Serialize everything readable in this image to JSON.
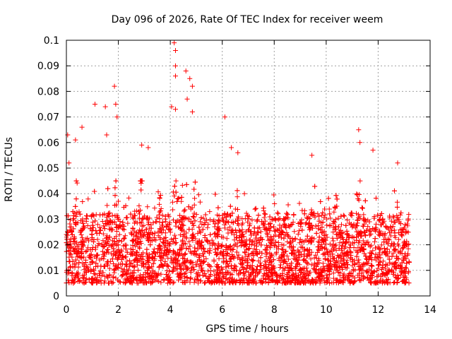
{
  "chart_data": {
    "type": "scatter",
    "title": "Day 096 of 2026, Rate Of TEC Index for receiver weem",
    "xlabel": "GPS time / hours",
    "ylabel": "ROTI / TECUs",
    "xlim": [
      0,
      14
    ],
    "ylim": [
      0,
      0.1
    ],
    "grid": true,
    "marker": "+",
    "color": "#ff0000",
    "x_ticks": [
      "0",
      "2",
      "4",
      "6",
      "8",
      "10",
      "12",
      "14"
    ],
    "y_ticks": [
      "0",
      "0.01",
      "0.02",
      "0.03",
      "0.04",
      "0.05",
      "0.06",
      "0.07",
      "0.08",
      "0.09",
      "0.1"
    ],
    "x_tick_values": [
      0,
      2,
      4,
      6,
      8,
      10,
      12,
      14
    ],
    "y_tick_values": [
      0,
      0.01,
      0.02,
      0.03,
      0.04,
      0.05,
      0.06,
      0.07,
      0.08,
      0.09,
      0.1
    ],
    "series": [
      {
        "name": "ROTI",
        "x_range": [
          0,
          13.2
        ],
        "baseline_range": [
          0.005,
          0.03
        ],
        "notable_points": [
          {
            "x": 0.05,
            "y": 0.063
          },
          {
            "x": 0.1,
            "y": 0.052
          },
          {
            "x": 0.35,
            "y": 0.061
          },
          {
            "x": 0.6,
            "y": 0.066
          },
          {
            "x": 1.1,
            "y": 0.075
          },
          {
            "x": 1.5,
            "y": 0.074
          },
          {
            "x": 1.55,
            "y": 0.063
          },
          {
            "x": 1.85,
            "y": 0.082
          },
          {
            "x": 1.9,
            "y": 0.075
          },
          {
            "x": 1.95,
            "y": 0.07
          },
          {
            "x": 2.9,
            "y": 0.059
          },
          {
            "x": 3.15,
            "y": 0.058
          },
          {
            "x": 4.05,
            "y": 0.074
          },
          {
            "x": 4.15,
            "y": 0.099
          },
          {
            "x": 4.2,
            "y": 0.096
          },
          {
            "x": 4.2,
            "y": 0.09
          },
          {
            "x": 4.2,
            "y": 0.086
          },
          {
            "x": 4.2,
            "y": 0.073
          },
          {
            "x": 4.6,
            "y": 0.088
          },
          {
            "x": 4.65,
            "y": 0.077
          },
          {
            "x": 4.75,
            "y": 0.085
          },
          {
            "x": 4.85,
            "y": 0.082
          },
          {
            "x": 4.85,
            "y": 0.072
          },
          {
            "x": 6.1,
            "y": 0.07
          },
          {
            "x": 6.35,
            "y": 0.058
          },
          {
            "x": 6.6,
            "y": 0.056
          },
          {
            "x": 9.45,
            "y": 0.055
          },
          {
            "x": 11.25,
            "y": 0.065
          },
          {
            "x": 11.3,
            "y": 0.06
          },
          {
            "x": 11.8,
            "y": 0.057
          },
          {
            "x": 12.75,
            "y": 0.052
          }
        ],
        "bursts": [
          {
            "center": 0.4,
            "peak": 0.045
          },
          {
            "center": 1.6,
            "peak": 0.045
          },
          {
            "center": 1.9,
            "peak": 0.05
          },
          {
            "center": 2.9,
            "peak": 0.055
          },
          {
            "center": 3.6,
            "peak": 0.05
          },
          {
            "center": 4.2,
            "peak": 0.06
          },
          {
            "center": 4.7,
            "peak": 0.06
          },
          {
            "center": 5.0,
            "peak": 0.055
          },
          {
            "center": 6.5,
            "peak": 0.05
          },
          {
            "center": 7.5,
            "peak": 0.045
          },
          {
            "center": 9.5,
            "peak": 0.045
          },
          {
            "center": 10.4,
            "peak": 0.04
          },
          {
            "center": 11.3,
            "peak": 0.05
          },
          {
            "center": 11.9,
            "peak": 0.045
          },
          {
            "center": 12.8,
            "peak": 0.045
          }
        ]
      }
    ]
  }
}
